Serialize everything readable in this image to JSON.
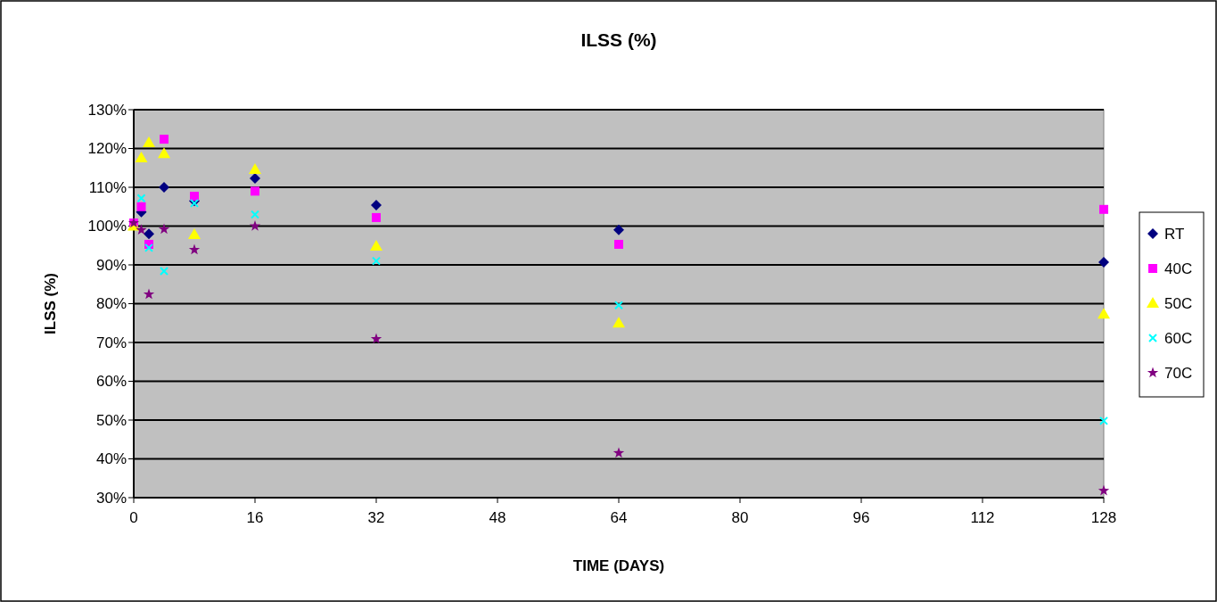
{
  "chart_data": {
    "type": "scatter",
    "title": "ILSS (%)",
    "xlabel": "TIME (DAYS)",
    "ylabel": "ILSS (%)",
    "x": [
      0,
      1,
      2,
      4,
      8,
      16,
      32,
      64,
      128
    ],
    "xlim": [
      0,
      128
    ],
    "xticks": [
      0,
      16,
      32,
      48,
      64,
      80,
      96,
      112,
      128
    ],
    "ylim": [
      30,
      130
    ],
    "yticks": [
      {
        "value": 30,
        "label": "30%"
      },
      {
        "value": 40,
        "label": "40%"
      },
      {
        "value": 50,
        "label": "50%"
      },
      {
        "value": 60,
        "label": "60%"
      },
      {
        "value": 70,
        "label": "70%"
      },
      {
        "value": 80,
        "label": "80%"
      },
      {
        "value": 90,
        "label": "90%"
      },
      {
        "value": 100,
        "label": "100%"
      },
      {
        "value": 110,
        "label": "110%"
      },
      {
        "value": 120,
        "label": "120%"
      },
      {
        "value": 130,
        "label": "130%"
      }
    ],
    "grid": "y",
    "legend": "right",
    "series": [
      {
        "name": "RT",
        "color": "#000080",
        "marker": "diamond",
        "values": [
          null,
          103.6,
          98,
          110,
          106.5,
          112.3,
          105.4,
          99,
          90.7
        ]
      },
      {
        "name": "40C",
        "color": "#ff00ff",
        "marker": "square",
        "values": [
          100.8,
          105,
          95.3,
          122.4,
          107.7,
          109,
          102.2,
          95.3,
          104.3
        ]
      },
      {
        "name": "50C",
        "color": "#ffff00",
        "marker": "triangle",
        "values": [
          100,
          117.6,
          121.5,
          118.7,
          97.8,
          114.6,
          94.8,
          75,
          77.3
        ]
      },
      {
        "name": "60C",
        "color": "#00ffff",
        "marker": "cross",
        "values": [
          null,
          107.2,
          94.4,
          88.4,
          105.9,
          103,
          91,
          79.6,
          49.8
        ]
      },
      {
        "name": "70C",
        "color": "#800080",
        "marker": "star",
        "values": [
          100.8,
          99,
          82.4,
          99.2,
          93.9,
          100,
          70.9,
          41.5,
          31.8
        ]
      }
    ]
  }
}
